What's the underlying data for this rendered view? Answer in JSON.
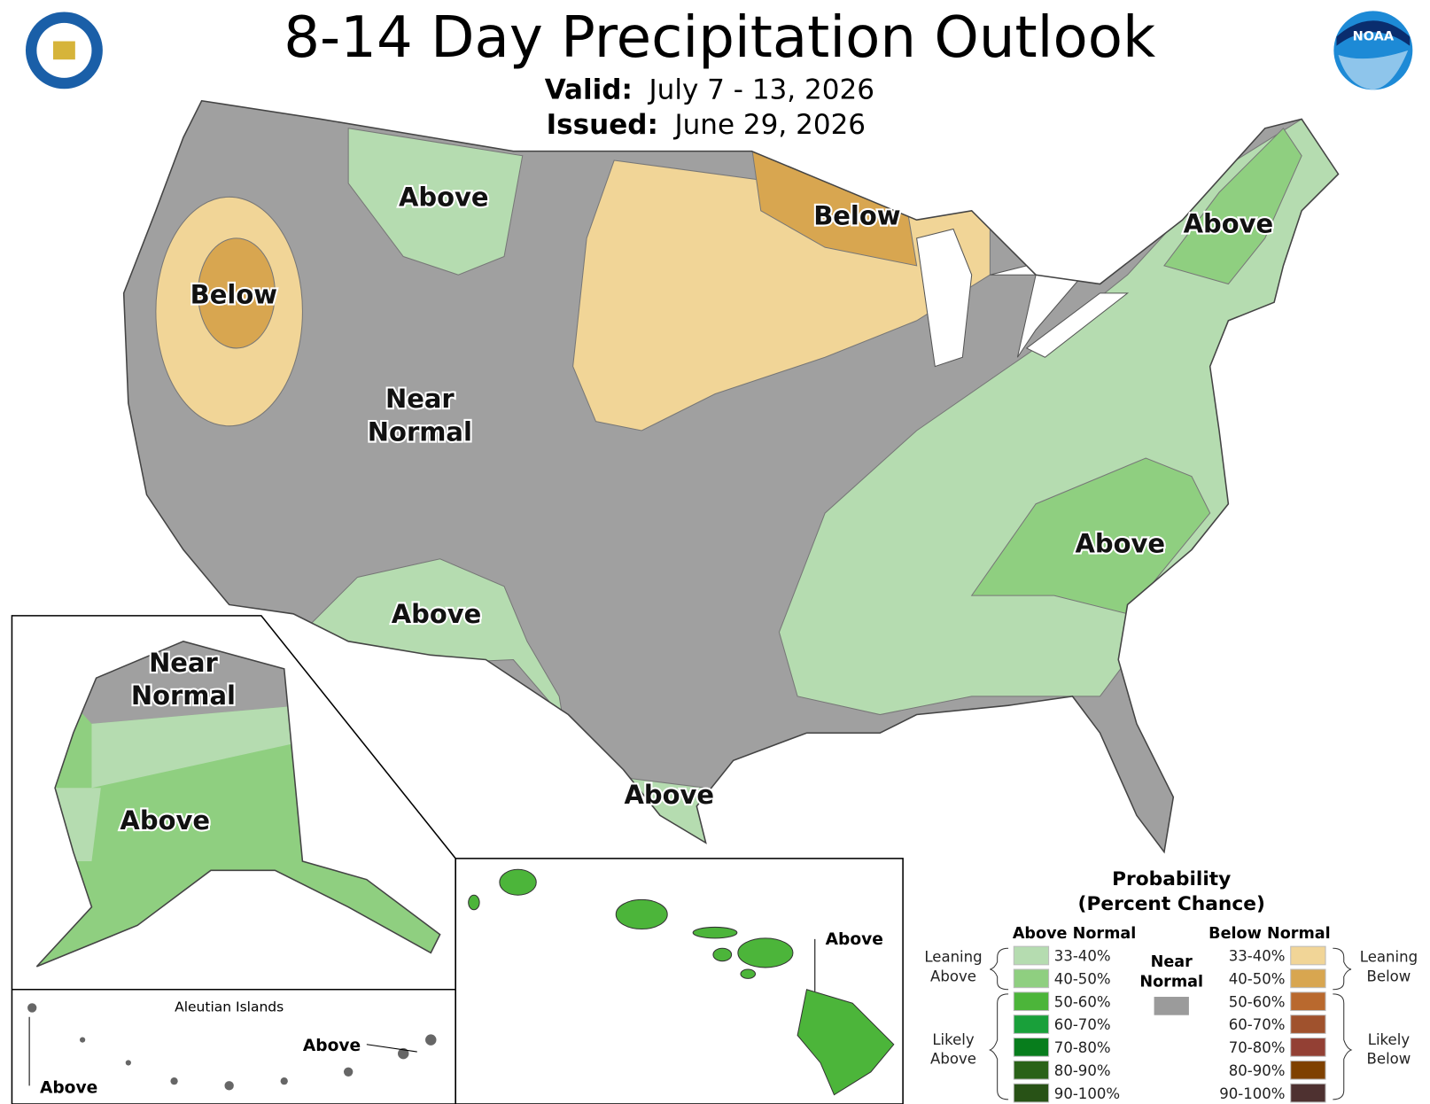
{
  "header": {
    "title": "8-14 Day Precipitation Outlook",
    "valid_label": "Valid:",
    "valid": "July 7 - 13, 2026",
    "issued_label": "Issued:",
    "issued": "June 29, 2026"
  },
  "map_labels": [
    [
      "Above"
    ],
    [
      "Below"
    ],
    [
      "Above"
    ],
    [
      "Below"
    ],
    [
      "Near",
      "Normal"
    ],
    [
      "Above"
    ],
    [
      "Above"
    ],
    [
      "Above"
    ]
  ],
  "alaska_labels": [
    [
      "Near",
      "Normal"
    ],
    [
      "Above"
    ]
  ],
  "aleutian": {
    "title": "Aleutian Islands",
    "labels": [
      "Above",
      "Above"
    ]
  },
  "hawaii_label": "Above",
  "legend": {
    "title": [
      "Probability",
      "(Percent Chance)"
    ],
    "above_header": "Above Normal",
    "below_header": "Below Normal",
    "near_normal": {
      "label": [
        "Near",
        "Normal"
      ],
      "color": "#9b9b9b"
    },
    "leaning_above": [
      "Leaning",
      "Above"
    ],
    "likely_above": [
      "Likely",
      "Above"
    ],
    "leaning_below": [
      "Leaning",
      "Below"
    ],
    "likely_below": [
      "Likely",
      "Below"
    ],
    "above_items": [
      {
        "label": "33-40%",
        "color": "#b5dcb0"
      },
      {
        "label": "40-50%",
        "color": "#8fcf80"
      },
      {
        "label": "50-60%",
        "color": "#4cb53a"
      },
      {
        "label": "60-70%",
        "color": "#19a03a"
      },
      {
        "label": "70-80%",
        "color": "#077d1c"
      },
      {
        "label": "80-90%",
        "color": "#2a6218"
      },
      {
        "label": "90-100%",
        "color": "#285216"
      }
    ],
    "below_items": [
      {
        "label": "33-40%",
        "color": "#f1d597"
      },
      {
        "label": "40-50%",
        "color": "#d8a650"
      },
      {
        "label": "50-60%",
        "color": "#b9692e"
      },
      {
        "label": "60-70%",
        "color": "#a0522d"
      },
      {
        "label": "70-80%",
        "color": "#934034"
      },
      {
        "label": "80-90%",
        "color": "#7f4100"
      },
      {
        "label": "90-100%",
        "color": "#4e3130"
      }
    ]
  }
}
